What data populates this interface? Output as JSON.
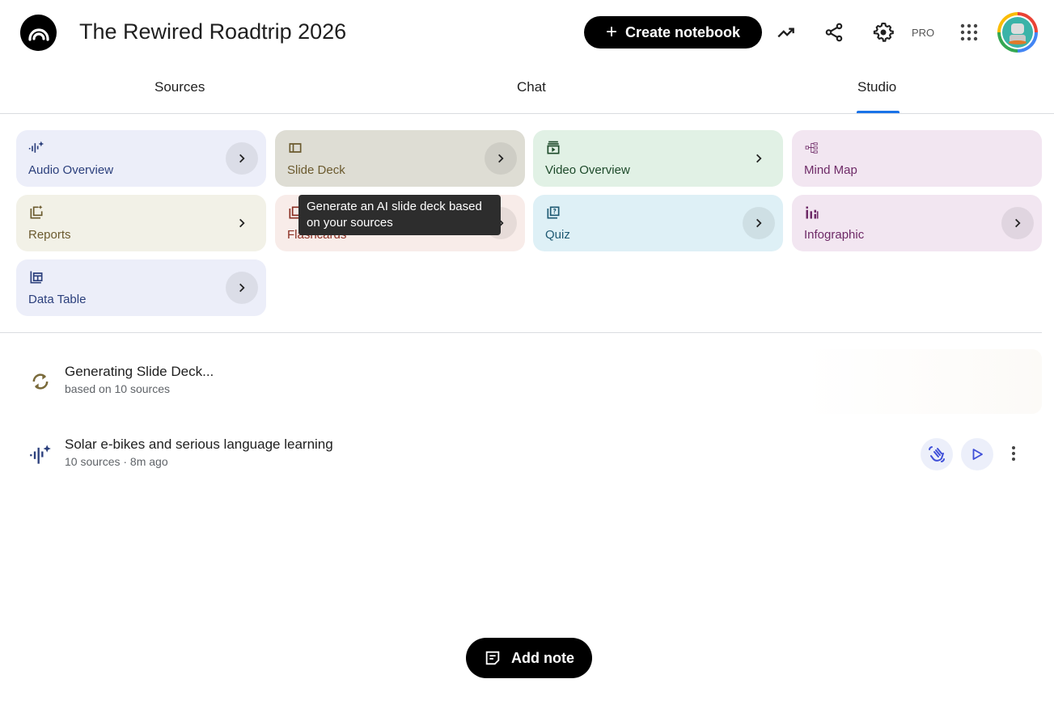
{
  "header": {
    "title": "The Rewired Roadtrip 2026",
    "create_label": "Create notebook",
    "pro_label": "PRO"
  },
  "tabs": [
    {
      "label": "Sources"
    },
    {
      "label": "Chat"
    },
    {
      "label": "Studio",
      "active": true
    }
  ],
  "accent": "#1a73e8",
  "studio_cards": [
    {
      "label": "Audio Overview",
      "icon": "audio-waveform-icon",
      "bg": "#eceef9",
      "color": "#2b3f7c"
    },
    {
      "label": "Slide Deck",
      "icon": "slide-deck-icon",
      "bg": "#deddd4",
      "color": "#6b5a2e"
    },
    {
      "label": "Video Overview",
      "icon": "video-icon",
      "bg": "#e1f1e5",
      "color": "#1d4a2a"
    },
    {
      "label": "Mind Map",
      "icon": "mind-map-icon",
      "bg": "#f2e6f1",
      "color": "#6e2a67"
    },
    {
      "label": "Reports",
      "icon": "reports-icon",
      "bg": "#f2f1e7",
      "color": "#6b5a2e"
    },
    {
      "label": "Flashcards",
      "icon": "flashcards-icon",
      "bg": "#f8ece9",
      "color": "#8a2e22"
    },
    {
      "label": "Quiz",
      "icon": "quiz-icon",
      "bg": "#def0f6",
      "color": "#1f5a73"
    },
    {
      "label": "Infographic",
      "icon": "infographic-icon",
      "bg": "#f2e6f1",
      "color": "#6e2a67"
    },
    {
      "label": "Data Table",
      "icon": "data-table-icon",
      "bg": "#eceef9",
      "color": "#2b3f7c"
    }
  ],
  "tooltip": "Generate an AI slide deck based on your sources",
  "items": [
    {
      "title": "Generating Slide Deck...",
      "subtitle": "based on 10 sources",
      "icon": "sync-icon"
    },
    {
      "title": "Solar e-bikes and serious language learning",
      "subtitle": "10 sources · 8m ago",
      "icon": "audio-waveform-icon"
    }
  ],
  "add_note_label": "Add note"
}
